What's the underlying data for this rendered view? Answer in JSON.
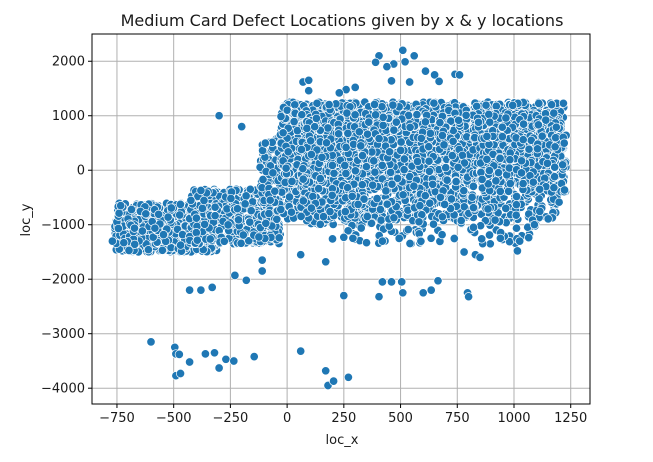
{
  "chart_data": {
    "type": "scatter",
    "title": "Medium Card Defect Locations given by x & y locations",
    "xlabel": "loc_x",
    "ylabel": "loc_y",
    "xlim": [
      -860,
      1335
    ],
    "ylim": [
      -4290,
      2500
    ],
    "xticks": [
      -750,
      -500,
      -250,
      0,
      250,
      500,
      750,
      1000,
      1250
    ],
    "yticks": [
      2000,
      1000,
      0,
      -1000,
      -2000,
      -3000,
      -4000
    ],
    "xtick_labels": [
      "−750",
      "−500",
      "−250",
      "0",
      "250",
      "500",
      "750",
      "1000",
      "1250"
    ],
    "ytick_labels": [
      "2000",
      "1000",
      "0",
      "−1000",
      "−2000",
      "−3000",
      "−4000"
    ],
    "grid": true,
    "marker_color": "#1f77b4",
    "clusters": [
      {
        "x": [
          -760,
          -300
        ],
        "y": [
          -1500,
          -600
        ],
        "n": 650
      },
      {
        "x": [
          -430,
          -30
        ],
        "y": [
          -1350,
          -350
        ],
        "n": 500
      },
      {
        "x": [
          -120,
          320
        ],
        "y": [
          -1000,
          600
        ],
        "n": 450
      },
      {
        "x": [
          -30,
          1220
        ],
        "y": [
          -250,
          1250
        ],
        "n": 2200
      },
      {
        "x": [
          60,
          1200
        ],
        "y": [
          -900,
          1050
        ],
        "n": 1100
      },
      {
        "x": [
          250,
          1100
        ],
        "y": [
          -1350,
          -250
        ],
        "n": 200
      },
      {
        "x": [
          850,
          1230
        ],
        "y": [
          -400,
          650
        ],
        "n": 350
      }
    ],
    "points": [
      {
        "x": 510,
        "y": 2200
      },
      {
        "x": 405,
        "y": 2100
      },
      {
        "x": 560,
        "y": 2100
      },
      {
        "x": 390,
        "y": 1980
      },
      {
        "x": 470,
        "y": 1950
      },
      {
        "x": 520,
        "y": 1990
      },
      {
        "x": 440,
        "y": 1900
      },
      {
        "x": 610,
        "y": 1820
      },
      {
        "x": 650,
        "y": 1750
      },
      {
        "x": 740,
        "y": 1760
      },
      {
        "x": 760,
        "y": 1750
      },
      {
        "x": 70,
        "y": 1620
      },
      {
        "x": 95,
        "y": 1650
      },
      {
        "x": 95,
        "y": 1460
      },
      {
        "x": 460,
        "y": 1640
      },
      {
        "x": 540,
        "y": 1620
      },
      {
        "x": 670,
        "y": 1630
      },
      {
        "x": 300,
        "y": 1520
      },
      {
        "x": 260,
        "y": 1480
      },
      {
        "x": 230,
        "y": 1420
      },
      {
        "x": -300,
        "y": 1000
      },
      {
        "x": -200,
        "y": 800
      },
      {
        "x": 1140,
        "y": 920
      },
      {
        "x": 780,
        "y": -1500
      },
      {
        "x": 830,
        "y": -1550
      },
      {
        "x": 850,
        "y": -1600
      },
      {
        "x": 1015,
        "y": -1480
      },
      {
        "x": 940,
        "y": -1250
      },
      {
        "x": 1090,
        "y": -1000
      },
      {
        "x": 290,
        "y": -1250
      },
      {
        "x": 420,
        "y": -1300
      },
      {
        "x": 350,
        "y": -1330
      },
      {
        "x": 170,
        "y": -1680
      },
      {
        "x": 200,
        "y": -1260
      },
      {
        "x": 250,
        "y": -1230
      },
      {
        "x": 60,
        "y": -1550
      },
      {
        "x": -110,
        "y": -1650
      },
      {
        "x": 250,
        "y": -2300
      },
      {
        "x": 420,
        "y": -2050
      },
      {
        "x": 460,
        "y": -2050
      },
      {
        "x": 505,
        "y": -2050
      },
      {
        "x": 510,
        "y": -2250
      },
      {
        "x": 405,
        "y": -2320
      },
      {
        "x": 600,
        "y": -2250
      },
      {
        "x": 635,
        "y": -2200
      },
      {
        "x": 665,
        "y": -2030
      },
      {
        "x": 795,
        "y": -2250
      },
      {
        "x": 800,
        "y": -2320
      },
      {
        "x": -430,
        "y": -2200
      },
      {
        "x": -380,
        "y": -2200
      },
      {
        "x": -330,
        "y": -2150
      },
      {
        "x": -230,
        "y": -1930
      },
      {
        "x": -180,
        "y": -2020
      },
      {
        "x": -110,
        "y": -1850
      },
      {
        "x": -600,
        "y": -3150
      },
      {
        "x": -495,
        "y": -3250
      },
      {
        "x": -490,
        "y": -3370
      },
      {
        "x": -475,
        "y": -3380
      },
      {
        "x": -430,
        "y": -3520
      },
      {
        "x": -360,
        "y": -3370
      },
      {
        "x": -320,
        "y": -3350
      },
      {
        "x": -300,
        "y": -3630
      },
      {
        "x": -270,
        "y": -3470
      },
      {
        "x": -235,
        "y": -3500
      },
      {
        "x": -145,
        "y": -3420
      },
      {
        "x": -490,
        "y": -3770
      },
      {
        "x": -470,
        "y": -3730
      },
      {
        "x": 60,
        "y": -3320
      },
      {
        "x": 170,
        "y": -3680
      },
      {
        "x": 180,
        "y": -3950
      },
      {
        "x": 205,
        "y": -3870
      },
      {
        "x": 270,
        "y": -3800
      },
      {
        "x": -770,
        "y": -1300
      },
      {
        "x": -720,
        "y": -1330
      }
    ]
  }
}
